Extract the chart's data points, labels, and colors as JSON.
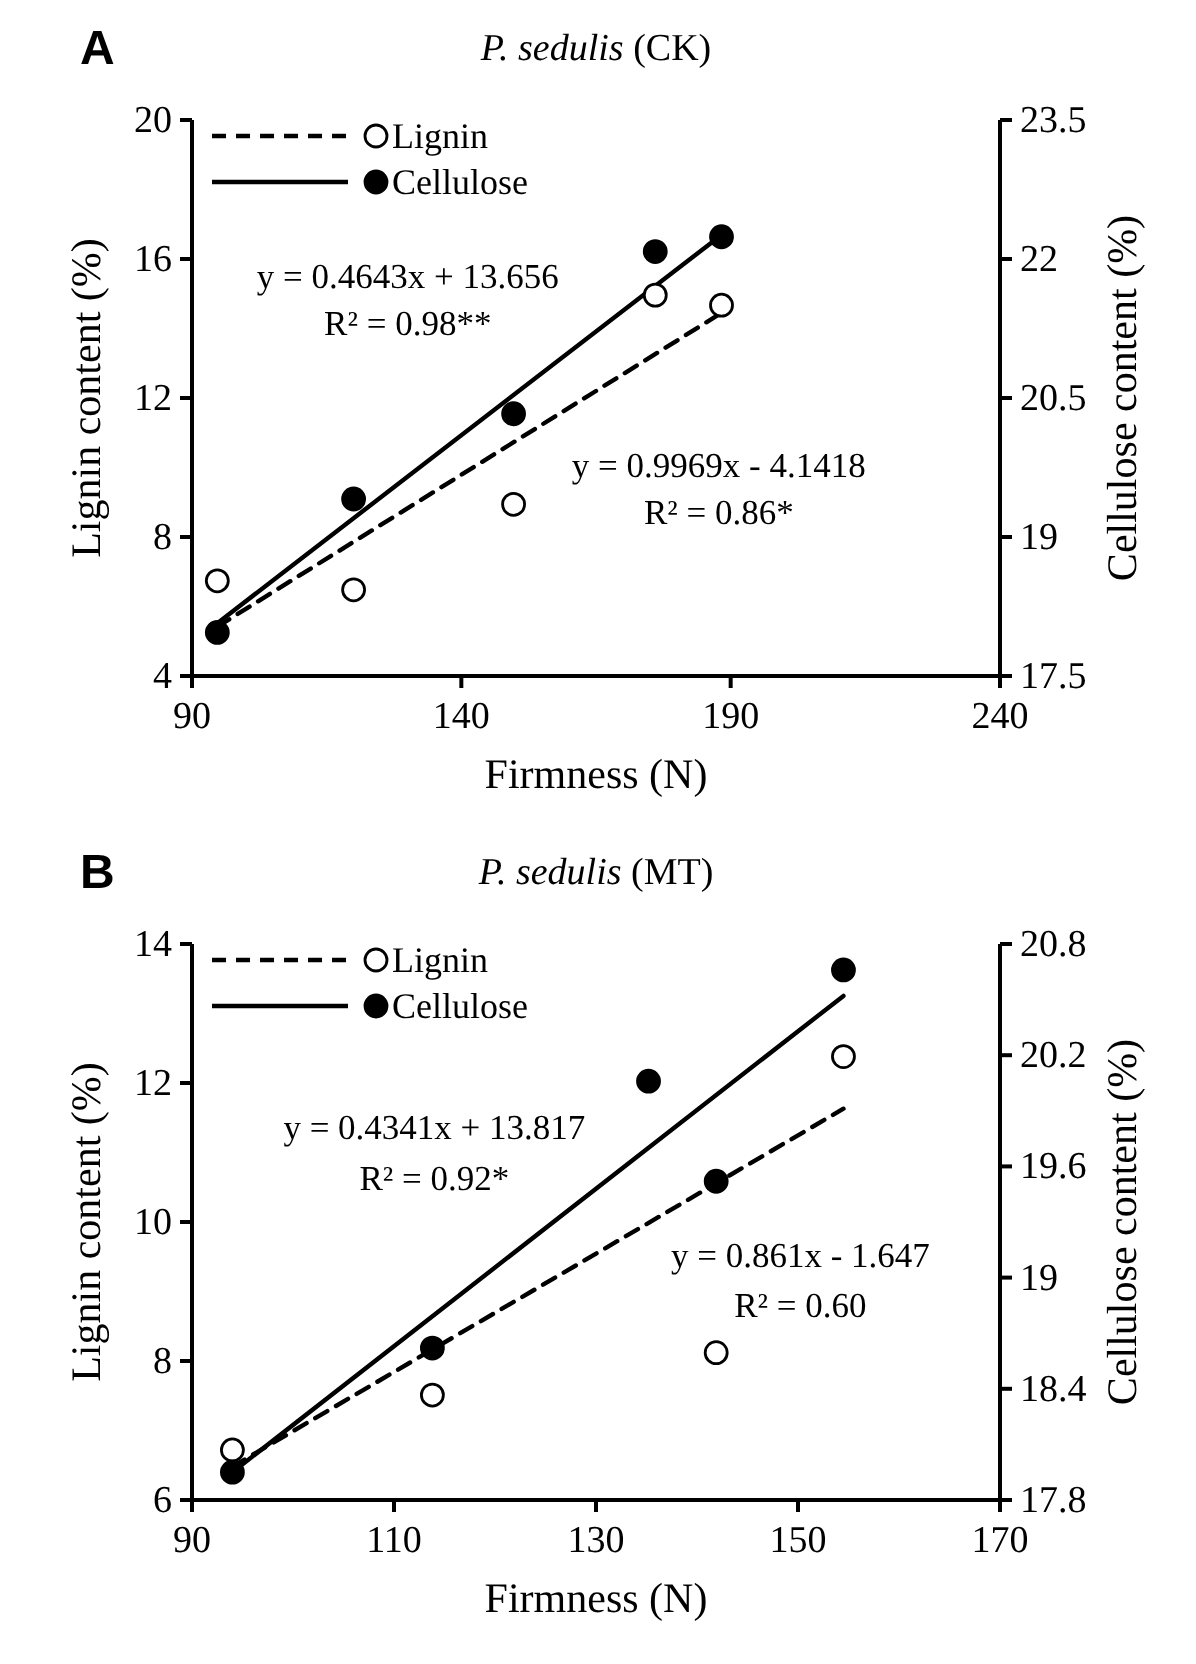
{
  "chart_data": [
    {
      "type": "scatter",
      "title": "P. sedulis (CK)",
      "xlabel": "Firmness (N)",
      "ylabel": "Lignin content (%)",
      "y2label": "Cellulose content (%)",
      "xlim": [
        90,
        240
      ],
      "xticks": [
        90,
        140,
        190,
        240
      ],
      "ylim": [
        4,
        20
      ],
      "yticks": [
        4,
        8,
        12,
        16,
        20
      ],
      "y2lim": [
        17.5,
        23.5
      ],
      "y2ticks": [
        17.5,
        19,
        20.5,
        22,
        23.5
      ],
      "legend": "top left",
      "grid": false,
      "series": [
        {
          "name": "Lignin",
          "marker": "circle",
          "color": "#ffffff",
          "x": [
            94.7,
            120,
            149.7,
            176,
            188.3
          ],
          "values": [
            6.74,
            6.48,
            8.94,
            14.96,
            14.67
          ]
        },
        {
          "name": "Cellulose",
          "marker": "circle",
          "color": "#000000",
          "axis": "y2",
          "x": [
            94.7,
            120,
            149.7,
            176,
            188.3
          ],
          "values": [
            17.97,
            19.41,
            20.33,
            22.08,
            22.24
          ]
        },
        {
          "type": "line",
          "color": "#000000",
          "line_style": "dashed",
          "x": [
            94.7,
            188.3
          ],
          "values": [
            5.42,
            14.45
          ]
        },
        {
          "type": "line",
          "color": "#000000",
          "line_style": "solid",
          "axis": "y2",
          "x": [
            94.7,
            188.3
          ],
          "values": [
            18.07,
            22.26
          ]
        }
      ],
      "annotations": [
        "A",
        "y = 0.4643x + 13.656",
        "R² = 0.98**",
        "y = 0.9969x - 4.1418",
        "R² = 0.86*"
      ]
    },
    {
      "type": "scatter",
      "title": "P. sedulis (MT)",
      "xlabel": "Firmness (N)",
      "ylabel": "Lignin content (%)",
      "y2label": "Cellulose content (%)",
      "xlim": [
        90,
        170
      ],
      "xticks": [
        90,
        110,
        130,
        150,
        170
      ],
      "ylim": [
        6,
        14
      ],
      "yticks": [
        6,
        8,
        10,
        12,
        14
      ],
      "y2lim": [
        17.8,
        20.8
      ],
      "y2ticks": [
        17.8,
        18.4,
        19,
        19.6,
        20.2,
        20.8
      ],
      "legend": "top left",
      "grid": false,
      "series": [
        {
          "name": "Lignin",
          "marker": "circle",
          "color": "#ffffff",
          "x": [
            94,
            113.8,
            141.9,
            154.5
          ],
          "values": [
            6.72,
            7.51,
            8.12,
            12.38
          ]
        },
        {
          "name": "Cellulose",
          "marker": "circle",
          "color": "#000000",
          "axis": "y2",
          "x": [
            94,
            113.8,
            135.2,
            141.9,
            154.5
          ],
          "values": [
            17.95,
            18.62,
            20.06,
            19.52,
            20.66
          ]
        },
        {
          "type": "line",
          "color": "#000000",
          "line_style": "dashed",
          "x": [
            94,
            154.5
          ],
          "values": [
            6.48,
            11.63
          ]
        },
        {
          "type": "line",
          "color": "#000000",
          "line_style": "solid",
          "axis": "y2",
          "x": [
            94,
            154.5
          ],
          "values": [
            17.95,
            20.52
          ]
        }
      ],
      "annotations": [
        "B",
        "y = 0.4341x + 13.817",
        "R² = 0.92*",
        "y = 0.861x - 1.647",
        "R² = 0.60"
      ]
    }
  ]
}
